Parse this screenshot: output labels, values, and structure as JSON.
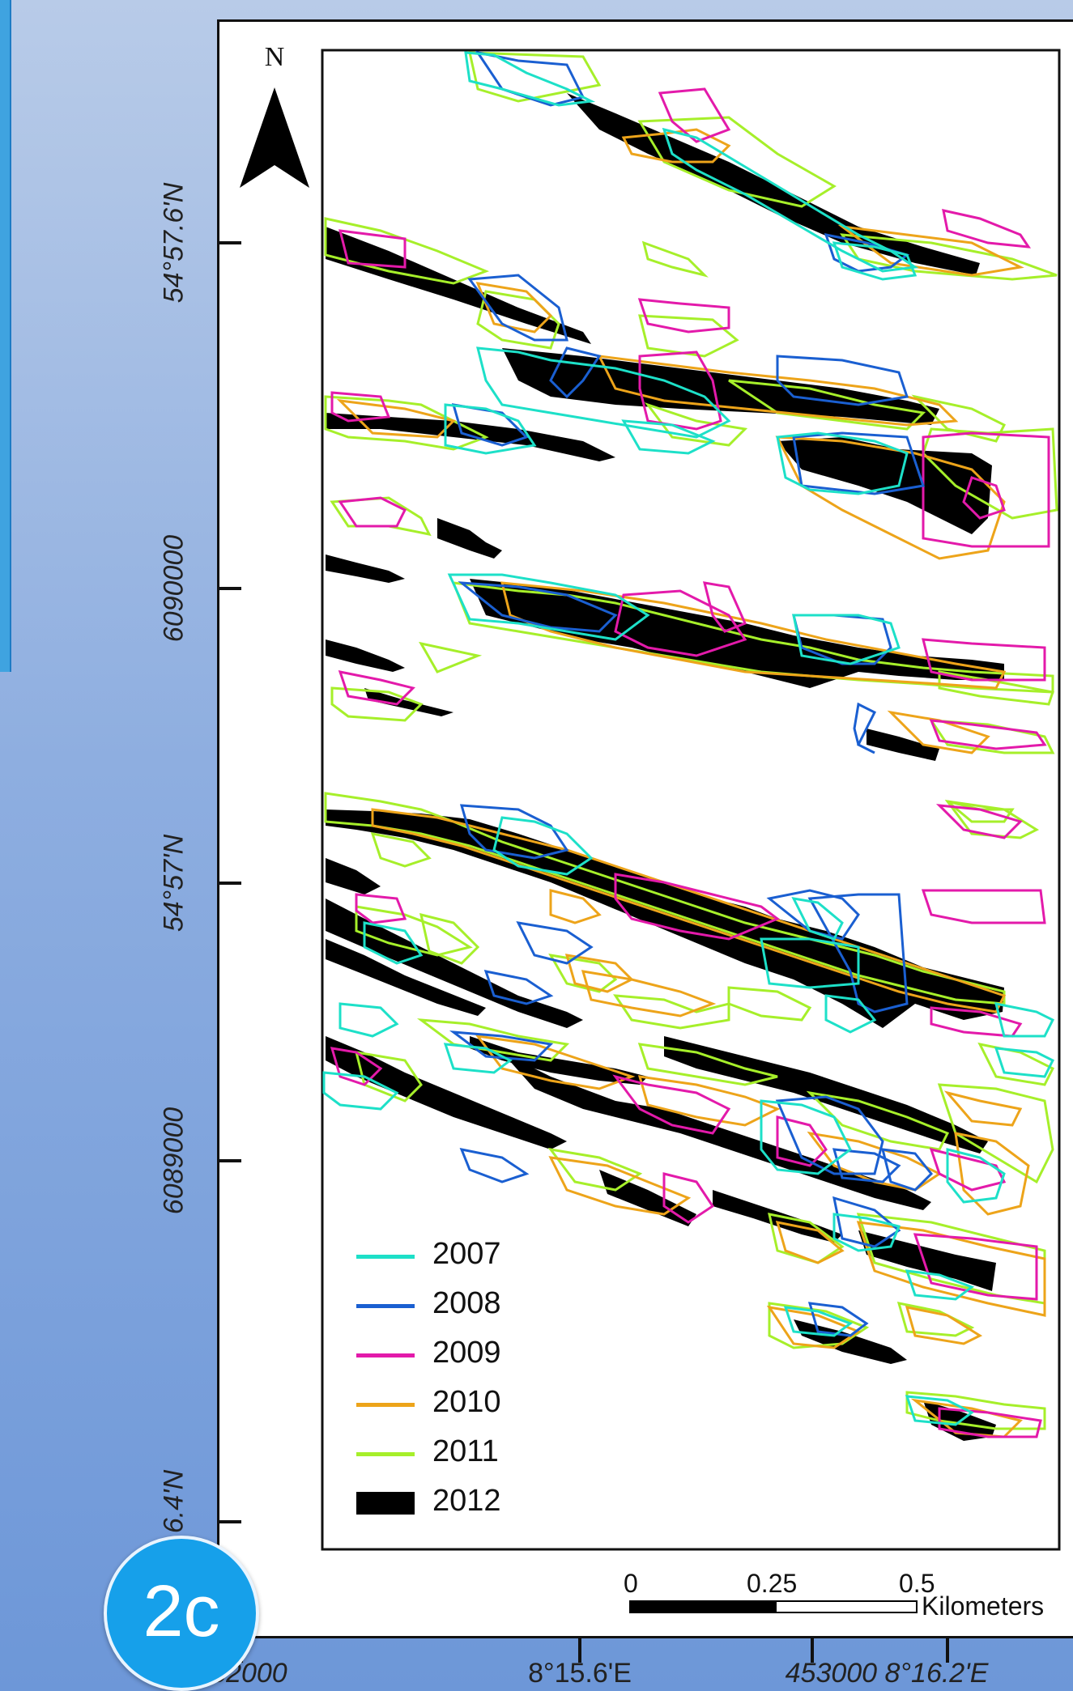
{
  "map": {
    "north_label": "N",
    "y_axis_labels": [
      "54°57.6'N",
      "6090000",
      "54°57'N",
      "6089000",
      "6.4'N"
    ],
    "x_axis_labels": [
      "452000",
      "8°15.6'E",
      "453000 8°16.2'E"
    ],
    "legend": [
      {
        "label": "2007",
        "color": "#1de0c8",
        "icon": "line"
      },
      {
        "label": "2008",
        "color": "#1a5fd1",
        "icon": "line"
      },
      {
        "label": "2009",
        "color": "#e31aaa",
        "icon": "line"
      },
      {
        "label": "2010",
        "color": "#eda41a",
        "icon": "line"
      },
      {
        "label": "2011",
        "color": "#a6ef2a",
        "icon": "line"
      },
      {
        "label": "2012",
        "color": "#000000",
        "icon": "fill"
      }
    ],
    "scale_bar": {
      "ticks": [
        "0",
        "0.25",
        "0.5"
      ],
      "unit": "Kilometers"
    }
  },
  "badge": {
    "label": "2c",
    "color": "#16a0ea"
  }
}
